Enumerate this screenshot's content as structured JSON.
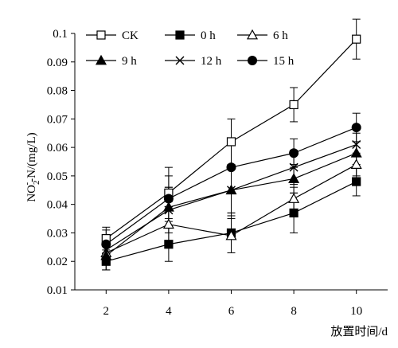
{
  "chart_data": {
    "type": "line",
    "xlabel": "放置时间/d",
    "ylabel_main": "NO",
    "ylabel_sub": "2",
    "ylabel_sup": "-",
    "ylabel_tail": "-N/(mg/L)",
    "x": [
      2,
      4,
      6,
      8,
      10
    ],
    "x_ticks": [
      "2",
      "4",
      "6",
      "8",
      "10"
    ],
    "y_ticks": [
      "0.01",
      "0.02",
      "0.03",
      "0.04",
      "0.05",
      "0.06",
      "0.07",
      "0.08",
      "0.09",
      "0.1"
    ],
    "ylim": [
      0.01,
      0.1
    ],
    "grid": false,
    "legend_position": "top",
    "series": [
      {
        "name": "CK",
        "marker": "square-open",
        "values": [
          0.028,
          0.044,
          0.062,
          0.075,
          0.098
        ],
        "errors": [
          0.004,
          0.009,
          0.008,
          0.006,
          0.007
        ]
      },
      {
        "name": "0 h",
        "marker": "square-filled",
        "values": [
          0.02,
          0.026,
          0.03,
          0.037,
          0.048
        ],
        "errors": [
          0.003,
          0.006,
          0.007,
          0.007,
          0.005
        ]
      },
      {
        "name": "6 h",
        "marker": "triangle-open",
        "values": [
          0.023,
          0.033,
          0.029,
          0.042,
          0.054
        ],
        "errors": [
          0.006,
          0.008,
          0.006,
          0.004,
          0.004
        ]
      },
      {
        "name": "9 h",
        "marker": "triangle-filled",
        "values": [
          0.022,
          0.039,
          0.045,
          0.049,
          0.058
        ],
        "errors": [
          0.005,
          0.007,
          0.008,
          0.005,
          0.004
        ]
      },
      {
        "name": "12 h",
        "marker": "x",
        "values": [
          0.024,
          0.038,
          0.045,
          0.053,
          0.061
        ],
        "errors": [
          0.005,
          0.008,
          0.009,
          0.006,
          0.004
        ]
      },
      {
        "name": "15 h",
        "marker": "circle-filled",
        "values": [
          0.026,
          0.042,
          0.053,
          0.058,
          0.067
        ],
        "errors": [
          0.005,
          0.008,
          0.009,
          0.005,
          0.005
        ]
      }
    ]
  }
}
